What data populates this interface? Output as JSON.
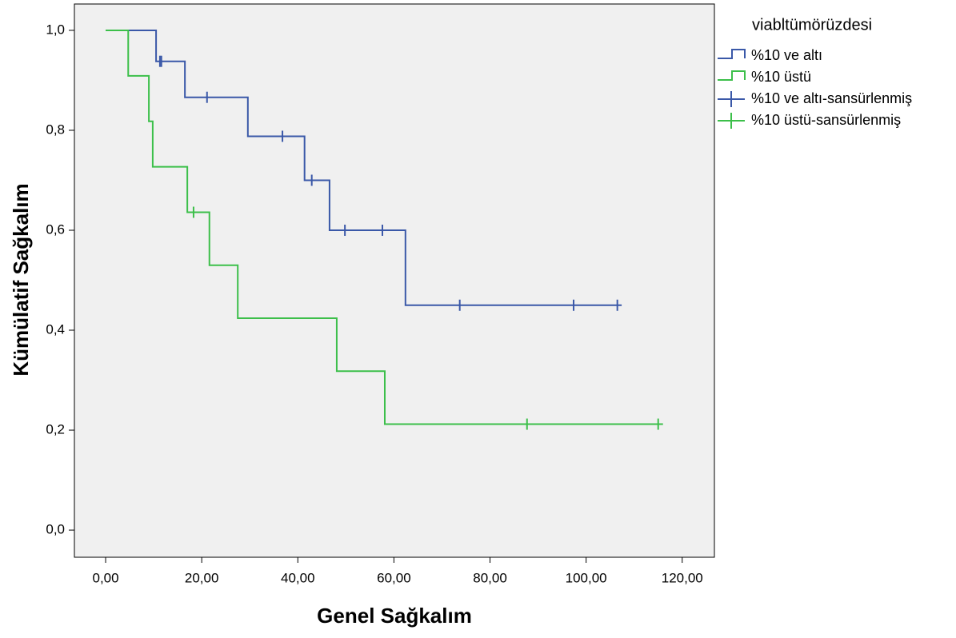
{
  "chart_data": {
    "type": "step",
    "x_label": "Genel Sağkalım",
    "y_label": "Kümülatif Sağkalım",
    "legend_title": "viabltümörüzdesi",
    "xlim": [
      -6.5,
      126.7
    ],
    "ylim": [
      -0.0543,
      1.0527
    ],
    "xticks": [
      {
        "value": 0,
        "label": "0,00"
      },
      {
        "value": 20,
        "label": "20,00"
      },
      {
        "value": 40,
        "label": "40,00"
      },
      {
        "value": 60,
        "label": "60,00"
      },
      {
        "value": 80,
        "label": "80,00"
      },
      {
        "value": 100,
        "label": "100,00"
      },
      {
        "value": 120,
        "label": "120,00"
      }
    ],
    "yticks": [
      {
        "value": 0,
        "label": "0,0"
      },
      {
        "value": 0.2,
        "label": "0,2"
      },
      {
        "value": 0.4,
        "label": "0,4"
      },
      {
        "value": 0.6,
        "label": "0,6"
      },
      {
        "value": 0.8,
        "label": "0,8"
      },
      {
        "value": 1,
        "label": "1,0"
      }
    ],
    "series": [
      {
        "name": "%10 ve altı",
        "color": "#3a58a8",
        "kind": "curve",
        "x": [
          0,
          10.5,
          16.5,
          29.6,
          41.4,
          46.6,
          62.4,
          107.4
        ],
        "values": [
          1.0,
          0.938,
          0.866,
          0.788,
          0.7,
          0.6,
          0.45,
          0.45
        ]
      },
      {
        "name": "%10 üstü",
        "color": "#3cbf4a",
        "kind": "curve",
        "x": [
          0,
          4.7,
          9.0,
          9.8,
          17.0,
          21.6,
          27.5,
          48.1,
          58.1,
          116.0
        ],
        "values": [
          1.0,
          0.909,
          0.818,
          0.727,
          0.636,
          0.53,
          0.424,
          0.318,
          0.212,
          0.212
        ]
      },
      {
        "name": "%10 ve altı-sansürlenmiş",
        "color": "#3a58a8",
        "kind": "censor",
        "x": [
          11.3,
          11.6,
          21.1,
          36.8,
          42.9,
          49.8,
          57.6,
          73.7,
          97.4,
          106.5
        ],
        "values": [
          0.938,
          0.938,
          0.866,
          0.788,
          0.7,
          0.6,
          0.6,
          0.45,
          0.45,
          0.45
        ]
      },
      {
        "name": "%10 üstü-sansürlenmiş",
        "color": "#3cbf4a",
        "kind": "censor",
        "x": [
          18.3,
          87.7,
          115.0
        ],
        "values": [
          0.636,
          0.212,
          0.212
        ]
      }
    ]
  }
}
